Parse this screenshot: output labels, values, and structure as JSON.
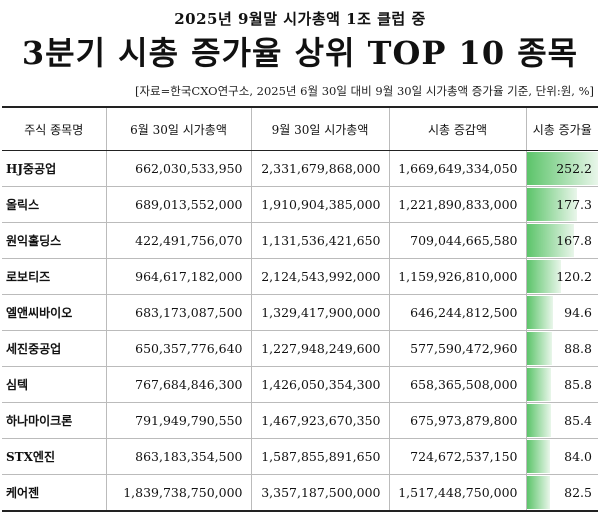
{
  "header": {
    "subtitle": "2025년 9월말 시가총액 1조 클럽 중",
    "title": "3분기 시총 증가율 상위 TOP 10 종목",
    "source": "[자료=한국CXO연구소, 2025년 6월 30일 대비 9월 30일 시가총액 증가율 기준, 단위:원, %]"
  },
  "table": {
    "headers": [
      "주식 종목명",
      "6월 30일 시가총액",
      "9월 30일 시가총액",
      "시총 증감액",
      "시총 증가율"
    ],
    "rows": [
      {
        "name": "HJ중공업",
        "jun": "662,030,533,950",
        "sep": "2,331,679,868,000",
        "diff": "1,669,649,334,050",
        "rate": "252.2",
        "rate_num": 252.2
      },
      {
        "name": "올릭스",
        "jun": "689,013,552,000",
        "sep": "1,910,904,385,000",
        "diff": "1,221,890,833,000",
        "rate": "177.3",
        "rate_num": 177.3
      },
      {
        "name": "원익홀딩스",
        "jun": "422,491,756,070",
        "sep": "1,131,536,421,650",
        "diff": "709,044,665,580",
        "rate": "167.8",
        "rate_num": 167.8
      },
      {
        "name": "로보티즈",
        "jun": "964,617,182,000",
        "sep": "2,124,543,992,000",
        "diff": "1,159,926,810,000",
        "rate": "120.2",
        "rate_num": 120.2
      },
      {
        "name": "엘앤씨바이오",
        "jun": "683,173,087,500",
        "sep": "1,329,417,900,000",
        "diff": "646,244,812,500",
        "rate": "94.6",
        "rate_num": 94.6
      },
      {
        "name": "세진중공업",
        "jun": "650,357,776,640",
        "sep": "1,227,948,249,600",
        "diff": "577,590,472,960",
        "rate": "88.8",
        "rate_num": 88.8
      },
      {
        "name": "심텍",
        "jun": "767,684,846,300",
        "sep": "1,426,050,354,300",
        "diff": "658,365,508,000",
        "rate": "85.8",
        "rate_num": 85.8
      },
      {
        "name": "하나마이크론",
        "jun": "791,949,790,550",
        "sep": "1,467,923,670,350",
        "diff": "675,973,879,800",
        "rate": "85.4",
        "rate_num": 85.4
      },
      {
        "name": "STX엔진",
        "jun": "863,183,354,500",
        "sep": "1,587,855,891,650",
        "diff": "724,672,537,150",
        "rate": "84.0",
        "rate_num": 84.0
      },
      {
        "name": "케어젠",
        "jun": "1,839,738,750,000",
        "sep": "3,357,187,500,000",
        "diff": "1,517,448,750,000",
        "rate": "82.5",
        "rate_num": 82.5
      }
    ]
  },
  "colors": {
    "bar_strong": "#5cc46a",
    "bar_light": "#e9f6ea"
  }
}
